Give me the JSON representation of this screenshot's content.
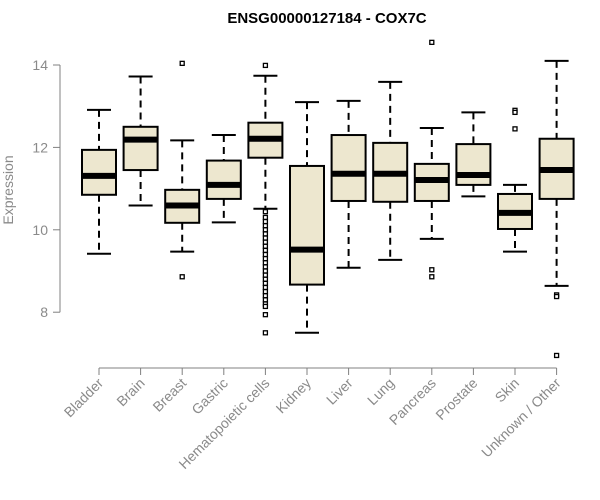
{
  "chart_data": {
    "type": "boxplot",
    "title": "ENSG00000127184 - COX7C",
    "xlabel": "",
    "ylabel": "Expression",
    "ylim": [
      6.8,
      14.6
    ],
    "yticks": [
      "8",
      "10",
      "12",
      "14"
    ],
    "grid": false,
    "colors": {
      "box_fill": "#ede7cf",
      "stroke": "#000000",
      "axis": "#808080"
    },
    "categories": [
      "Bladder",
      "Brain",
      "Breast",
      "Gastric",
      "Hematopoietic cells",
      "Kidney",
      "Liver",
      "Lung",
      "Pancreas",
      "Prostate",
      "Skin",
      "Unknown / Other"
    ],
    "boxes": [
      {
        "low": 9.42,
        "q1": 10.85,
        "median": 11.31,
        "q3": 11.94,
        "high": 12.91,
        "outliers": []
      },
      {
        "low": 10.59,
        "q1": 11.45,
        "median": 12.19,
        "q3": 12.5,
        "high": 13.72,
        "outliers": []
      },
      {
        "low": 9.47,
        "q1": 10.17,
        "median": 10.59,
        "q3": 10.97,
        "high": 12.17,
        "outliers": [
          14.04,
          8.86
        ]
      },
      {
        "low": 10.18,
        "q1": 10.75,
        "median": 11.09,
        "q3": 11.68,
        "high": 12.3,
        "outliers": []
      },
      {
        "low": 10.51,
        "q1": 11.75,
        "median": 12.21,
        "q3": 12.6,
        "high": 13.74,
        "outliers": [
          13.99,
          10.44,
          10.3,
          10.2,
          10.1,
          10.0,
          9.9,
          9.8,
          9.7,
          9.6,
          9.5,
          9.4,
          9.3,
          9.2,
          9.1,
          9.0,
          8.9,
          8.8,
          8.7,
          8.6,
          8.5,
          8.4,
          8.3,
          8.2,
          8.14,
          7.94,
          7.5
        ]
      },
      {
        "low": 7.5,
        "q1": 8.67,
        "median": 9.52,
        "q3": 11.55,
        "high": 13.1,
        "outliers": []
      },
      {
        "low": 9.08,
        "q1": 10.7,
        "median": 11.36,
        "q3": 12.3,
        "high": 13.13,
        "outliers": []
      },
      {
        "low": 9.27,
        "q1": 10.68,
        "median": 11.36,
        "q3": 12.11,
        "high": 13.59,
        "outliers": []
      },
      {
        "low": 9.78,
        "q1": 10.7,
        "median": 11.21,
        "q3": 11.6,
        "high": 12.47,
        "outliers": [
          14.55,
          9.03,
          8.86
        ]
      },
      {
        "low": 10.81,
        "q1": 11.09,
        "median": 11.33,
        "q3": 12.08,
        "high": 12.85,
        "outliers": []
      },
      {
        "low": 9.47,
        "q1": 10.02,
        "median": 10.41,
        "q3": 10.87,
        "high": 11.09,
        "outliers": [
          12.9,
          12.85,
          12.45
        ]
      },
      {
        "low": 8.64,
        "q1": 10.75,
        "median": 11.45,
        "q3": 12.21,
        "high": 14.1,
        "outliers": [
          8.42,
          8.38,
          6.95
        ]
      }
    ]
  }
}
